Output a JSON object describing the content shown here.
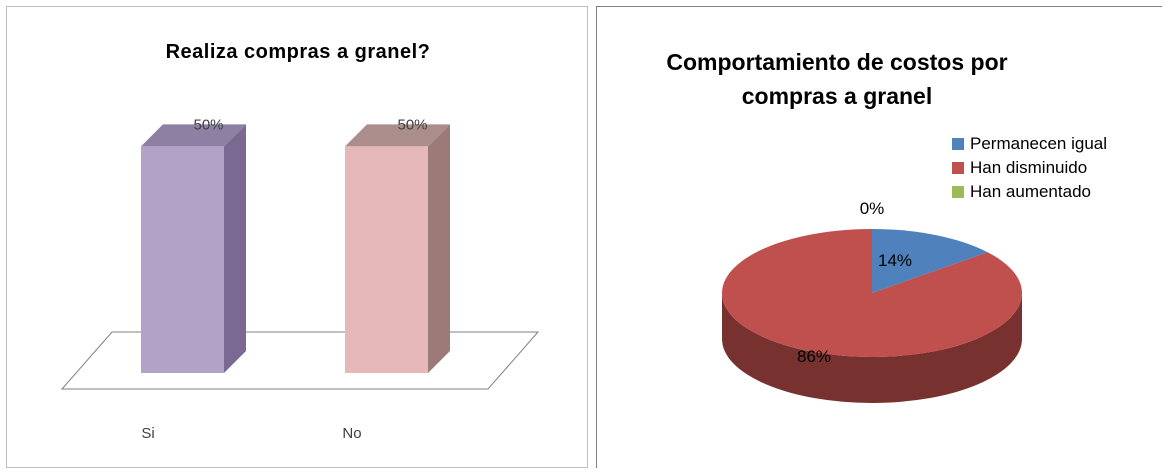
{
  "chart_data": [
    {
      "type": "bar",
      "title": "Realiza compras a granel?",
      "categories": [
        "Si",
        "No"
      ],
      "values": [
        50,
        50
      ],
      "data_labels": [
        "50%",
        "50%"
      ],
      "colors": [
        "#b3a2c7",
        "#e6b9b8"
      ],
      "side_colors": [
        "#7a6a92",
        "#9c7a78"
      ],
      "ylim": [
        0,
        60
      ],
      "xlabel": "",
      "ylabel": "",
      "grid": false,
      "legend": "none"
    },
    {
      "type": "pie",
      "title": "Comportamiento de costos por compras a granel",
      "categories": [
        "Permanecen igual",
        "Han disminuido",
        "Han aumentado"
      ],
      "values": [
        14,
        86,
        0
      ],
      "data_labels": [
        "14%",
        "86%",
        "0%"
      ],
      "colors": [
        "#4f81bd",
        "#c0504d",
        "#9bbb59"
      ],
      "legend": "right"
    }
  ]
}
